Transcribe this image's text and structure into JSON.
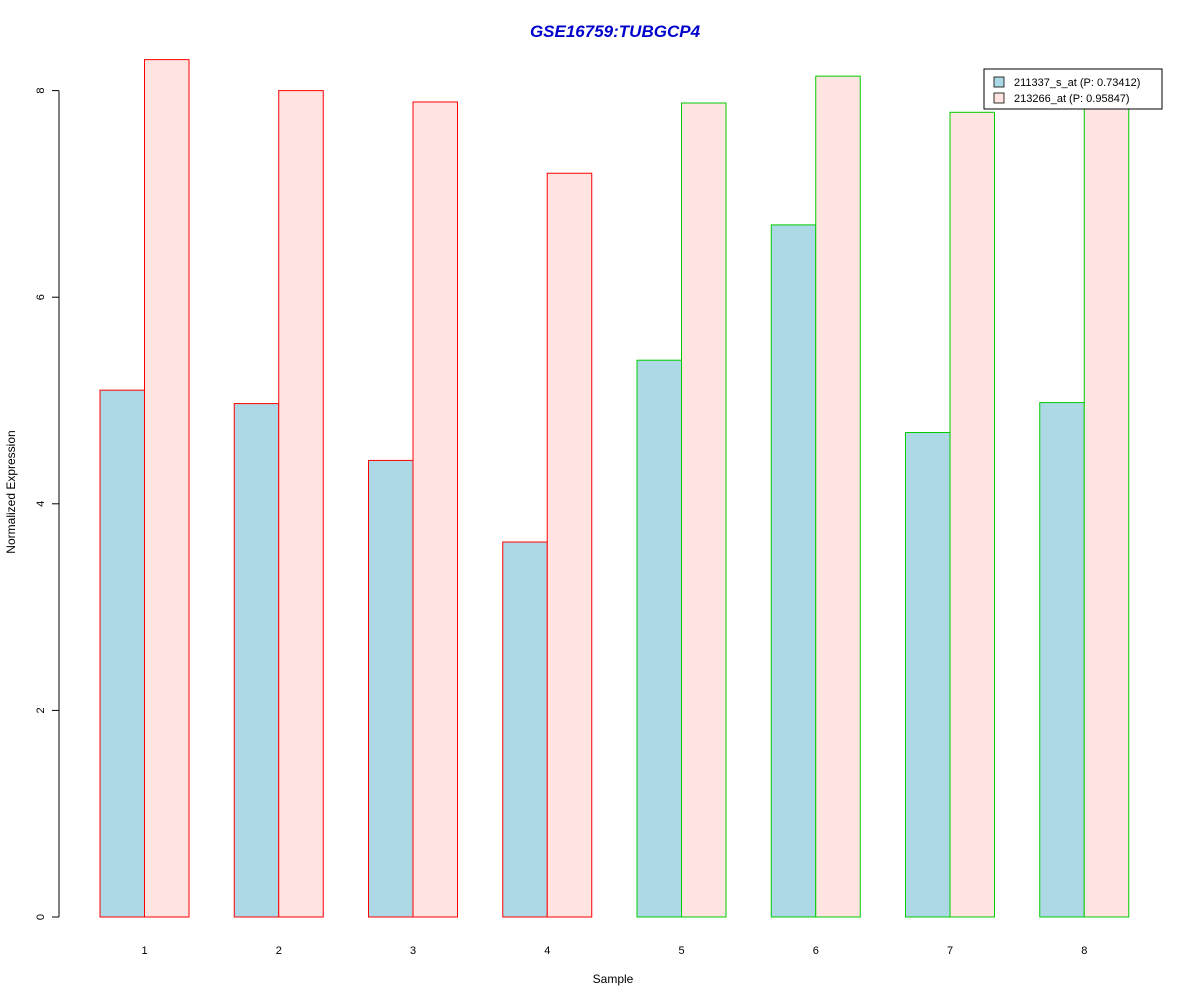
{
  "chart_data": {
    "type": "bar",
    "title": "GSE16759:TUBGCP4",
    "title_color": "#0000CC",
    "xlabel": "Sample",
    "ylabel": "Normalized Expression",
    "categories": [
      "1",
      "2",
      "3",
      "4",
      "5",
      "6",
      "7",
      "8"
    ],
    "yticks": [
      "0",
      "2",
      "4",
      "6",
      "8"
    ],
    "ylim": [
      0,
      8.3
    ],
    "group_border_colors": [
      "#FF0000",
      "#FF0000",
      "#FF0000",
      "#FF0000",
      "#00CC00",
      "#00CC00",
      "#00CC00",
      "#00CC00"
    ],
    "series": [
      {
        "name": "211337_s_at (P: 0.73412)",
        "color": "#ADD8E6",
        "values": [
          5.1,
          4.97,
          4.42,
          3.63,
          5.39,
          6.7,
          4.69,
          4.98
        ]
      },
      {
        "name": "213266_at (P: 0.95847)",
        "color": "#FFE4E1",
        "values": [
          8.3,
          8.0,
          7.89,
          7.2,
          7.88,
          8.14,
          7.79,
          7.98
        ]
      }
    ],
    "legend_position": "top-right",
    "grid": false
  }
}
